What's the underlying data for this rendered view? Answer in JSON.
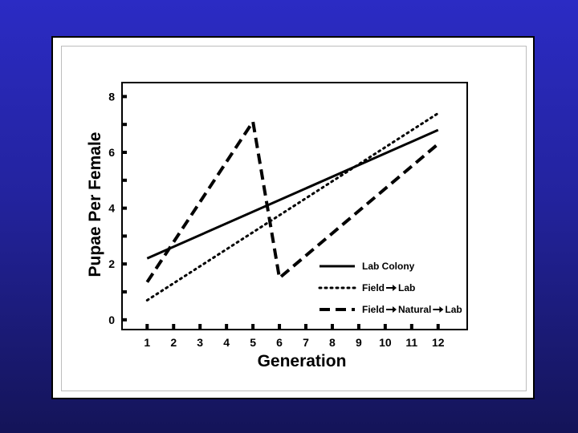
{
  "colors": {
    "background": "#2323a8",
    "frame": "#ffffff",
    "ink": "#000000"
  },
  "chart_data": {
    "type": "line",
    "title": "",
    "xlabel": "Generation",
    "ylabel": "Pupae Per Female",
    "x": [
      1,
      2,
      3,
      4,
      5,
      6,
      7,
      8,
      9,
      10,
      11,
      12
    ],
    "x_tick_labels": [
      "1",
      "2",
      "3",
      "4",
      "5",
      "6",
      "7",
      "8",
      "9",
      "10",
      "11",
      "12"
    ],
    "y_tick_labels": [
      "0",
      "2",
      "4",
      "6",
      "8"
    ],
    "xlim": [
      0.05,
      13.1
    ],
    "ylim": [
      -0.35,
      8.5
    ],
    "grid": false,
    "legend_position": "bottom-right",
    "series": [
      {
        "name": "Lab Colony",
        "style": "solid",
        "points": [
          [
            1,
            2.2
          ],
          [
            12,
            6.8
          ]
        ]
      },
      {
        "name": "Field→Lab",
        "style": "dotted",
        "points": [
          [
            1,
            0.7
          ],
          [
            12,
            7.4
          ]
        ]
      },
      {
        "name": "Field→Natural→Lab",
        "style": "dashed",
        "points": [
          [
            1,
            1.35
          ],
          [
            5,
            7.1
          ],
          [
            6,
            1.5
          ],
          [
            12,
            6.3
          ]
        ]
      }
    ],
    "legend": [
      {
        "parts": [
          "Lab Colony"
        ]
      },
      {
        "parts": [
          "Field",
          "Lab"
        ]
      },
      {
        "parts": [
          "Field",
          "Natural",
          "Lab"
        ]
      }
    ]
  }
}
